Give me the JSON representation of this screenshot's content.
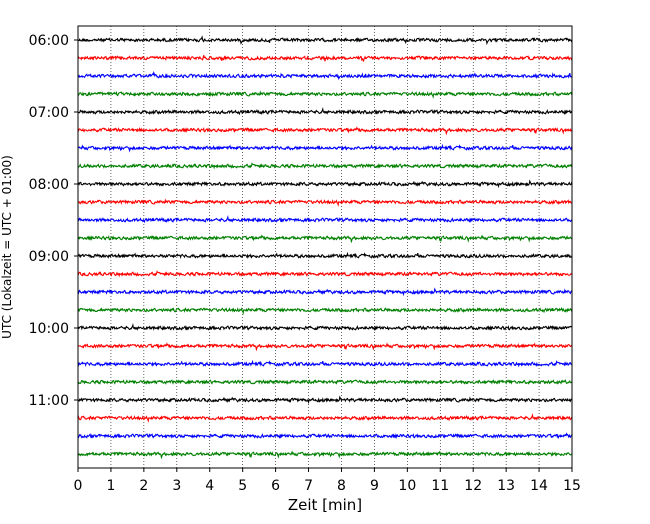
{
  "chart_data": {
    "type": "line",
    "title": "",
    "xlabel": "Zeit  [min]",
    "ylabel": "UTC (Lokalzeit = UTC + 01:00)",
    "xlim": [
      0,
      15
    ],
    "x_ticks": [
      0,
      1,
      2,
      3,
      4,
      5,
      6,
      7,
      8,
      9,
      10,
      11,
      12,
      13,
      14,
      15
    ],
    "y_tick_labels": [
      "06:00",
      "07:00",
      "08:00",
      "09:00",
      "10:00",
      "11:00"
    ],
    "y_tick_hours": [
      6,
      7,
      8,
      9,
      10,
      11
    ],
    "trace_start_hour": 6.0,
    "trace_interval_min": 15,
    "trace_count": 24,
    "trace_colors": [
      "#000000",
      "#ff0000",
      "#0000ff",
      "#008000"
    ],
    "grid": "vertical dotted lines at every minute",
    "legend": "none"
  }
}
